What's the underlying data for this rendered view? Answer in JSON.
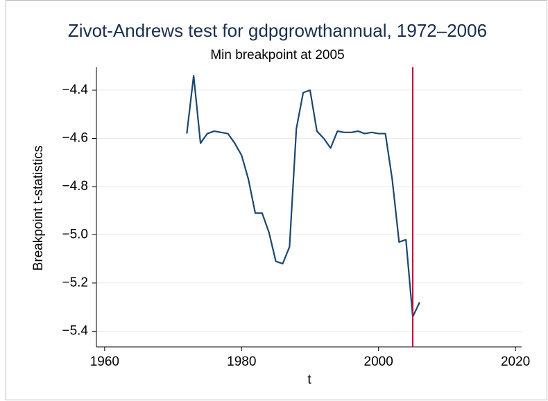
{
  "chart_data": {
    "type": "line",
    "title": "Zivot-Andrews test for gdpgrowthannual, 1972–2006",
    "subtitle": "Min breakpoint at 2005",
    "x_label": "t",
    "y_label": "Breakpoint t-statistics",
    "x": [
      1972,
      1973,
      1974,
      1975,
      1976,
      1977,
      1978,
      1979,
      1980,
      1981,
      1982,
      1983,
      1984,
      1985,
      1986,
      1987,
      1988,
      1989,
      1990,
      1991,
      1992,
      1993,
      1994,
      1995,
      1996,
      1997,
      1998,
      1999,
      2000,
      2001,
      2002,
      2003,
      2004,
      2005,
      2006
    ],
    "series": [
      {
        "name": "Breakpoint t-statistics",
        "color": "#1a476f",
        "values": [
          -4.58,
          -4.34,
          -4.62,
          -4.58,
          -4.57,
          -4.575,
          -4.58,
          -4.62,
          -4.67,
          -4.77,
          -4.91,
          -4.91,
          -4.99,
          -5.11,
          -5.12,
          -5.05,
          -4.56,
          -4.41,
          -4.4,
          -4.57,
          -4.6,
          -4.64,
          -4.57,
          -4.575,
          -4.575,
          -4.57,
          -4.58,
          -4.575,
          -4.58,
          -4.58,
          -4.77,
          -5.03,
          -5.02,
          -5.34,
          -5.28
        ]
      }
    ],
    "vline": {
      "value": 2005,
      "color": "#c10534"
    },
    "xlim": [
      1958.8,
      2020.9
    ],
    "xticks": [
      1960,
      1980,
      2000,
      2020
    ],
    "ylim": [
      -5.465,
      -4.305
    ],
    "yticks": [
      {
        "value": -4.4,
        "label": "−4.4"
      },
      {
        "value": -4.6,
        "label": "−4.6"
      },
      {
        "value": -4.8,
        "label": "−4.8"
      },
      {
        "value": -5.0,
        "label": "−5.0"
      },
      {
        "value": -5.2,
        "label": "−5.2"
      },
      {
        "value": -5.4,
        "label": "−5.4"
      }
    ],
    "grid": true
  }
}
